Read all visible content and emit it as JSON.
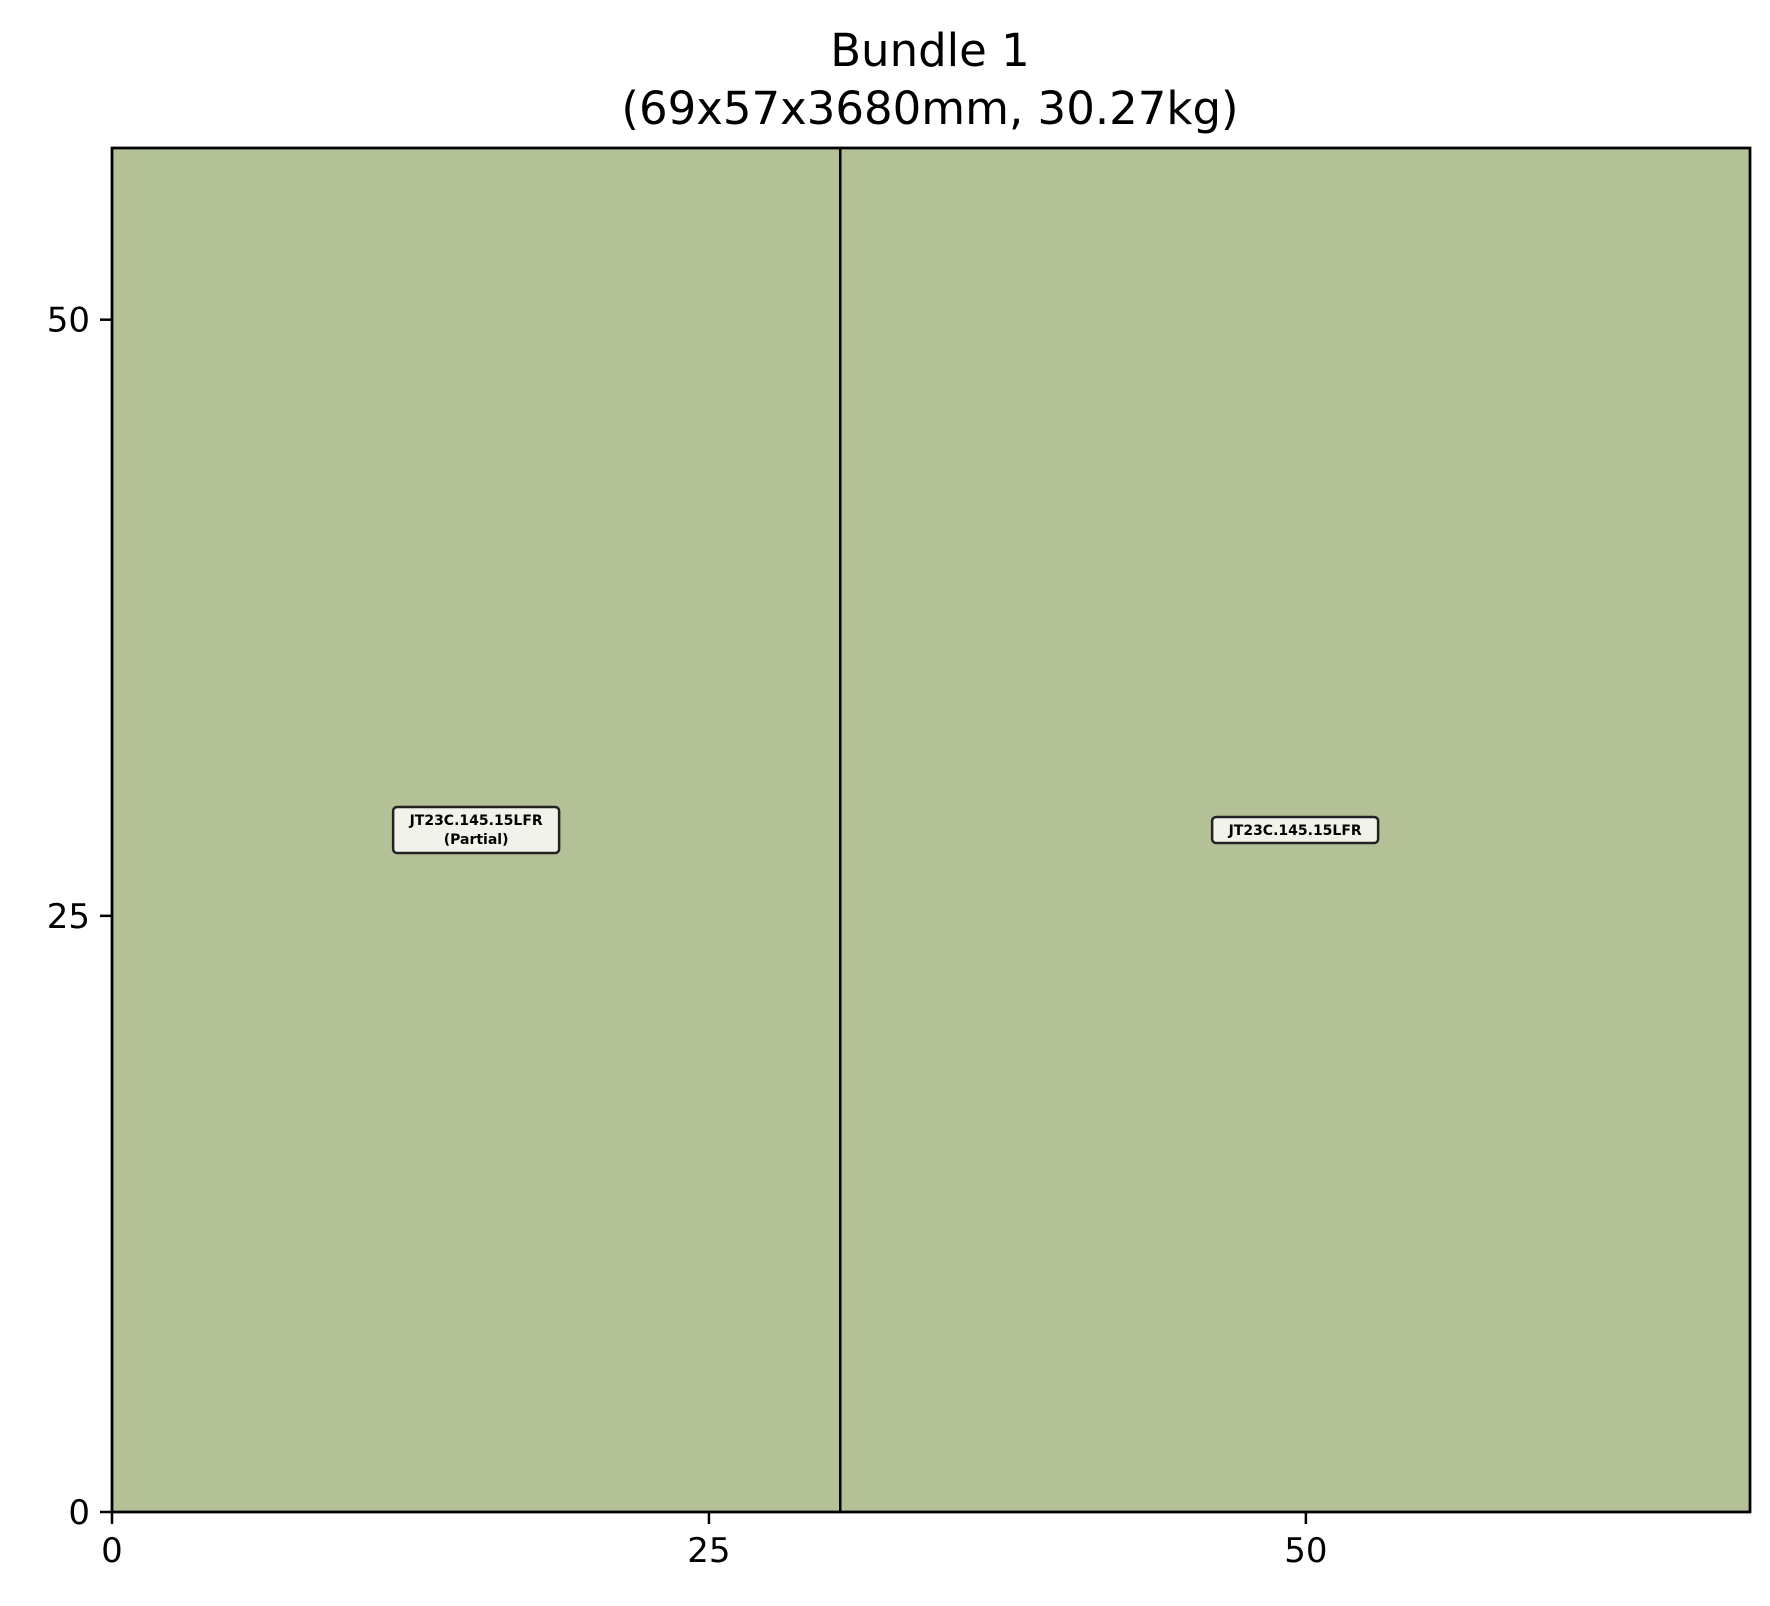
{
  "chart_data": {
    "type": "rectangles",
    "title": "Bundle 1",
    "subtitle": "(69x57x3680mm, 30.27kg)",
    "xlabel": "",
    "ylabel": "",
    "xlim": [
      0,
      68.6
    ],
    "ylim": [
      0,
      57.2
    ],
    "xticks": [
      0,
      25,
      50
    ],
    "yticks": [
      0,
      25,
      50
    ],
    "grid": false,
    "colors": {
      "fill": "#b4c196",
      "edge": "#000000",
      "label_bg": "#f1f3ea"
    },
    "pieces": [
      {
        "x": 0,
        "y": 0,
        "w": 30.5,
        "h": 57.2,
        "label": "JT23C.145.15LFR",
        "sublabel": "(Partial)"
      },
      {
        "x": 30.5,
        "y": 0,
        "w": 38.1,
        "h": 57.2,
        "label": "JT23C.145.15LFR",
        "sublabel": ""
      }
    ]
  }
}
